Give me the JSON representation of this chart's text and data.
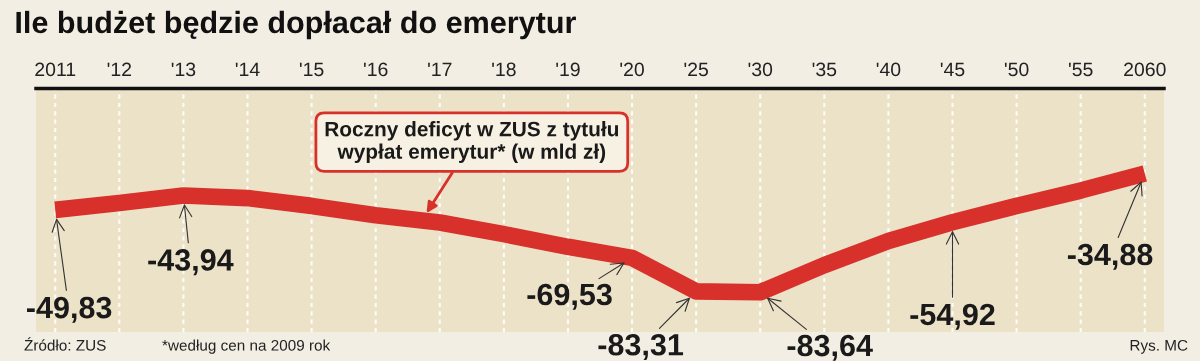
{
  "chart_data": {
    "type": "line",
    "title": "Ile budżet będzie dopłacał do emerytur",
    "categories": [
      "2011",
      "'12",
      "'13",
      "'14",
      "'15",
      "'16",
      "'17",
      "'18",
      "'19",
      "'20",
      "'25",
      "'30",
      "'35",
      "'40",
      "'45",
      "'50",
      "'55",
      "2060"
    ],
    "series": [
      {
        "color": "#d8312c",
        "values": [
          -49.83,
          -47.0,
          -43.94,
          -45.0,
          -48.2,
          -52.0,
          -55.0,
          -59.8,
          -65.0,
          -69.53,
          -83.31,
          -83.64,
          -72.5,
          -62.6,
          -54.92,
          -48.2,
          -41.9,
          -34.88
        ],
        "value_labels": [
          "-49,83",
          null,
          "-43,94",
          null,
          null,
          null,
          null,
          null,
          null,
          "-69,53",
          "-83,31",
          "-83,64",
          null,
          null,
          "-54,92",
          null,
          null,
          "-34,88"
        ]
      }
    ],
    "ylim": [
      -100,
      0
    ],
    "grid": "x",
    "marker": "none",
    "line_style": "solid",
    "annotations": [
      {
        "text": "Roczny deficyt w ZUS z tytułu\nwypłat emerytur* (w mld zł)",
        "x": "'17",
        "y": -55.0
      },
      "Źródło: ZUS",
      "*według cen na 2009 rok",
      "Rys. MC"
    ]
  }
}
